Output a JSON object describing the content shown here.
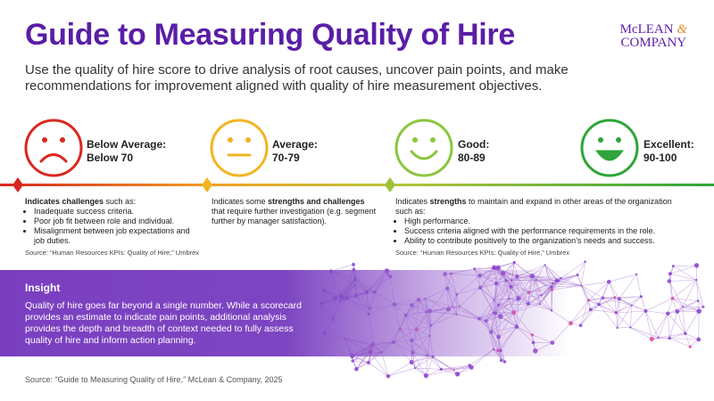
{
  "header": {
    "title": "Guide to Measuring Quality of Hire",
    "subtitle": "Use the quality of hire score to drive analysis of root causes, uncover pain points, and make recommendations for improvement aligned with quality of hire measurement objectives."
  },
  "logo": {
    "line1": "McLEAN",
    "amp": "&",
    "line2": "COMPANY"
  },
  "levels": [
    {
      "label": "Below Average:",
      "range": "Below 70",
      "color": "#d9271f"
    },
    {
      "label": "Average:",
      "range": "70-79",
      "color": "#f1b523"
    },
    {
      "label": "Good:",
      "range": "80-89",
      "color": "#8cc63f"
    },
    {
      "label": "Excellent:",
      "range": "90-100",
      "color": "#2ea53a"
    }
  ],
  "descriptions": [
    {
      "parts": [
        {
          "text": "Indicates challenges",
          "bold": true
        },
        {
          "text": " such as:"
        }
      ],
      "bullets": [
        "Inadequate success criteria.",
        "Poor job fit between role and individual.",
        "Misalignment between job expectations and job duties."
      ]
    },
    {
      "parts": [
        {
          "text": "Indicates some "
        },
        {
          "text": "strengths and challenges",
          "bold": true
        },
        {
          "text": " that require further investigation (e.g. segment further by manager satisfaction)."
        }
      ],
      "bullets": []
    },
    {
      "parts": [
        {
          "text": "Indicates "
        },
        {
          "text": "strengths",
          "bold": true
        },
        {
          "text": " to maintain and expand in other areas of the organization such as:"
        }
      ],
      "bullets": [
        "High performance.",
        "Success criteria aligned with the performance requirements in the role.",
        "Ability to contribute positively to the organization’s needs and success."
      ]
    }
  ],
  "sources": [
    "Source: “Human Resources KPIs: Quality of Hire,” Umbrex",
    "Source: “Human Resources KPIs: Quality of Hire,” Umbrex"
  ],
  "insight": {
    "title": "Insight",
    "text": "Quality of hire goes far beyond a single number. While a scorecard provides an estimate to indicate pain points, additional analysis provides the depth and breadth of context needed to fully assess quality of hire and inform action planning."
  },
  "footer": "Source: “Guide to Measuring Quality of Hire,” McLean & Company, 2025"
}
